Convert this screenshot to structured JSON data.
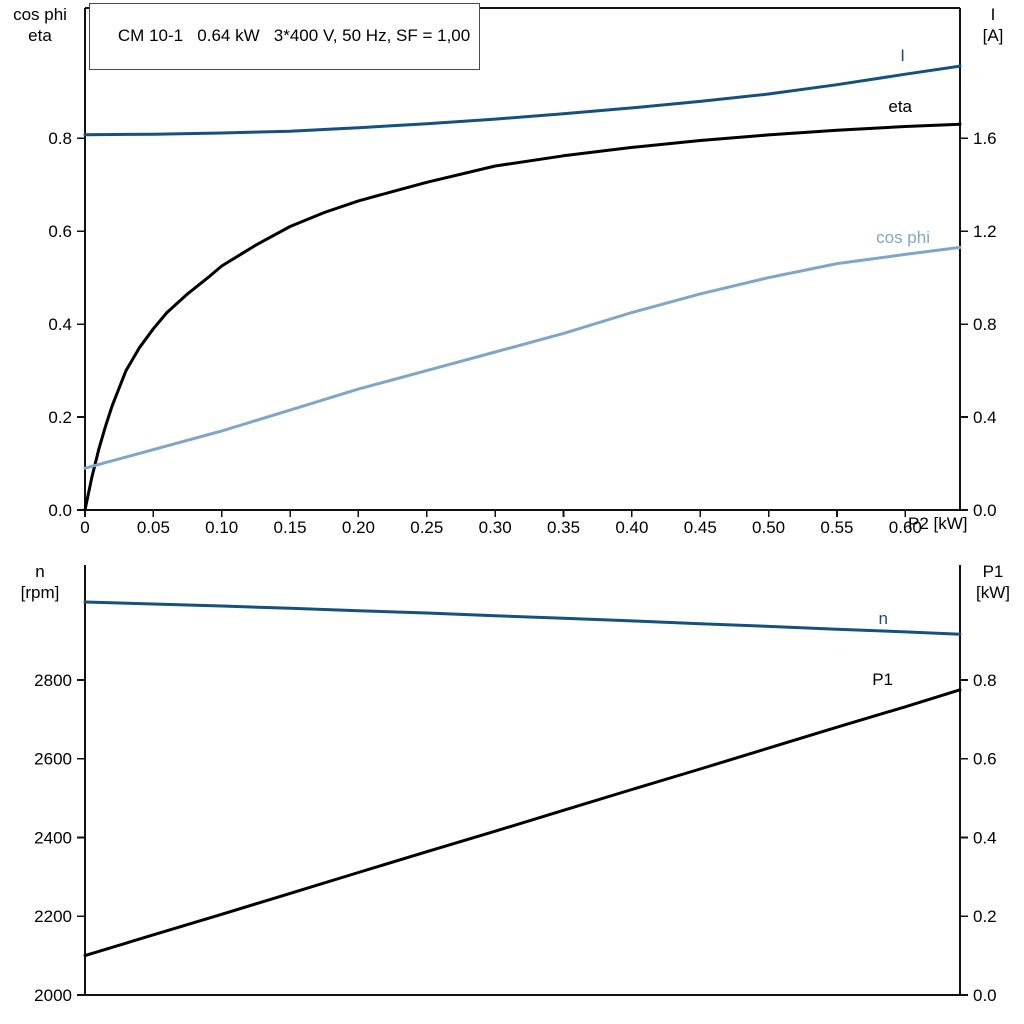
{
  "chart_data": [
    {
      "type": "line",
      "title": "CM 10-1   0.64 kW   3*400 V, 50 Hz, SF = 1,00",
      "x_label": "P2 [kW]",
      "x_range": [
        0,
        0.64
      ],
      "x_ticks": [
        {
          "v": 0,
          "label": "0"
        },
        {
          "v": 0.05,
          "label": "0.05"
        },
        {
          "v": 0.1,
          "label": "0.10"
        },
        {
          "v": 0.15,
          "label": "0.15"
        },
        {
          "v": 0.2,
          "label": "0.20"
        },
        {
          "v": 0.25,
          "label": "0.25"
        },
        {
          "v": 0.3,
          "label": "0.30"
        },
        {
          "v": 0.35,
          "label": "0.35"
        },
        {
          "v": 0.4,
          "label": "0.40"
        },
        {
          "v": 0.45,
          "label": "0.45"
        },
        {
          "v": 0.5,
          "label": "0.50"
        },
        {
          "v": 0.55,
          "label": "0.55"
        },
        {
          "v": 0.6,
          "label": "0.60"
        }
      ],
      "left_axis": {
        "label_lines": [
          "cos phi",
          "eta"
        ],
        "range": [
          0,
          1.08
        ],
        "ticks": [
          {
            "v": 0.0,
            "label": "0.0"
          },
          {
            "v": 0.2,
            "label": "0.2"
          },
          {
            "v": 0.4,
            "label": "0.4"
          },
          {
            "v": 0.6,
            "label": "0.6"
          },
          {
            "v": 0.8,
            "label": "0.8"
          }
        ]
      },
      "right_axis": {
        "label_lines": [
          "I",
          "[A]"
        ],
        "range": [
          0,
          2.16
        ],
        "ticks": [
          {
            "v": 0.0,
            "label": "0.0"
          },
          {
            "v": 0.4,
            "label": "0.4"
          },
          {
            "v": 0.8,
            "label": "0.8"
          },
          {
            "v": 1.2,
            "label": "1.2"
          },
          {
            "v": 1.6,
            "label": "1.6"
          }
        ]
      },
      "series": [
        {
          "name": "I",
          "axis": "right",
          "color": "#15517e",
          "x": [
            0,
            0.05,
            0.1,
            0.15,
            0.2,
            0.25,
            0.3,
            0.35,
            0.4,
            0.45,
            0.5,
            0.55,
            0.6,
            0.64
          ],
          "y": [
            1.615,
            1.617,
            1.622,
            1.63,
            1.645,
            1.662,
            1.682,
            1.705,
            1.73,
            1.758,
            1.79,
            1.83,
            1.875,
            1.91
          ]
        },
        {
          "name": "eta",
          "axis": "left",
          "color": "#000000",
          "x": [
            0,
            0.005,
            0.01,
            0.015,
            0.02,
            0.03,
            0.04,
            0.05,
            0.06,
            0.075,
            0.09,
            0.1,
            0.125,
            0.15,
            0.175,
            0.2,
            0.225,
            0.25,
            0.3,
            0.35,
            0.4,
            0.45,
            0.5,
            0.55,
            0.6,
            0.64
          ],
          "y": [
            0,
            0.07,
            0.13,
            0.18,
            0.225,
            0.3,
            0.35,
            0.39,
            0.425,
            0.465,
            0.5,
            0.525,
            0.57,
            0.61,
            0.64,
            0.665,
            0.685,
            0.705,
            0.74,
            0.762,
            0.78,
            0.795,
            0.807,
            0.817,
            0.825,
            0.83
          ]
        },
        {
          "name": "cos phi",
          "axis": "left",
          "color": "#7fa6c9",
          "x": [
            0,
            0.05,
            0.1,
            0.15,
            0.2,
            0.25,
            0.3,
            0.35,
            0.4,
            0.45,
            0.5,
            0.55,
            0.6,
            0.64
          ],
          "y": [
            0.09,
            0.13,
            0.17,
            0.215,
            0.26,
            0.3,
            0.34,
            0.38,
            0.425,
            0.465,
            0.5,
            0.53,
            0.55,
            0.565
          ]
        }
      ]
    },
    {
      "type": "line",
      "title": "",
      "x_label": "",
      "x_range": [
        0,
        0.64
      ],
      "x_ticks": [],
      "left_axis": {
        "label_lines": [
          "n",
          "[rpm]"
        ],
        "range": [
          2000,
          3092
        ],
        "ticks": [
          {
            "v": 2000,
            "label": "2000"
          },
          {
            "v": 2200,
            "label": "2200"
          },
          {
            "v": 2400,
            "label": "2400"
          },
          {
            "v": 2600,
            "label": "2600"
          },
          {
            "v": 2800,
            "label": "2800"
          }
        ]
      },
      "right_axis": {
        "label_lines": [
          "P1",
          "[kW]"
        ],
        "range": [
          0,
          1.092
        ],
        "ticks": [
          {
            "v": 0.0,
            "label": "0.0"
          },
          {
            "v": 0.2,
            "label": "0.2"
          },
          {
            "v": 0.4,
            "label": "0.4"
          },
          {
            "v": 0.6,
            "label": "0.6"
          },
          {
            "v": 0.8,
            "label": "0.8"
          }
        ]
      },
      "series": [
        {
          "name": "n",
          "axis": "left",
          "color": "#15517e",
          "x": [
            0,
            0.05,
            0.1,
            0.15,
            0.2,
            0.25,
            0.3,
            0.35,
            0.4,
            0.45,
            0.5,
            0.55,
            0.6,
            0.64
          ],
          "y": [
            2998,
            2993,
            2988,
            2982,
            2976,
            2970,
            2963,
            2957,
            2950,
            2943,
            2936,
            2929,
            2922,
            2916
          ]
        },
        {
          "name": "P1",
          "axis": "right",
          "color": "#000000",
          "x": [
            0,
            0.05,
            0.1,
            0.15,
            0.2,
            0.25,
            0.3,
            0.35,
            0.4,
            0.45,
            0.5,
            0.55,
            0.6,
            0.64
          ],
          "y": [
            0.1,
            0.153,
            0.205,
            0.258,
            0.311,
            0.364,
            0.416,
            0.469,
            0.522,
            0.574,
            0.627,
            0.68,
            0.732,
            0.775
          ]
        }
      ]
    }
  ]
}
